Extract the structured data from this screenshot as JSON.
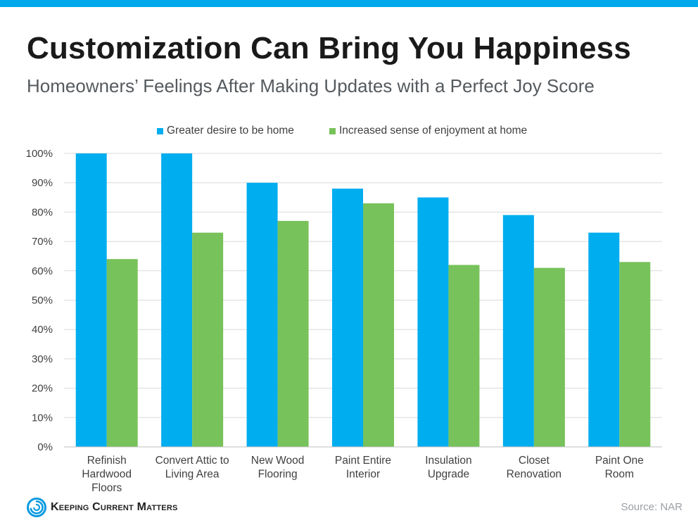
{
  "colors": {
    "top_bar": "#00a8ec",
    "series_blue": "#00adef",
    "series_green": "#77c25a",
    "axis_text": "#404040",
    "grid": "#d9d9d9"
  },
  "header": {
    "title": "Customization Can Bring You Happiness",
    "subtitle": "Homeowners’ Feelings After Making Updates with a Perfect Joy Score"
  },
  "chart_data": {
    "type": "bar",
    "title": "Customization Can Bring You Happiness",
    "subtitle": "Homeowners’ Feelings After Making Updates with a Perfect Joy Score",
    "categories": [
      "Refinish Hardwood Floors",
      "Convert Attic to Living Area",
      "New Wood Flooring",
      "Paint Entire Interior",
      "Insulation Upgrade",
      "Closet Renovation",
      "Paint One Room"
    ],
    "category_lines": [
      [
        "Refinish",
        "Hardwood",
        "Floors"
      ],
      [
        "Convert Attic to",
        "Living Area"
      ],
      [
        "New Wood",
        "Flooring"
      ],
      [
        "Paint Entire",
        "Interior"
      ],
      [
        "Insulation",
        "Upgrade"
      ],
      [
        "Closet",
        "Renovation"
      ],
      [
        "Paint One",
        "Room"
      ]
    ],
    "series": [
      {
        "name": "Greater desire to be home",
        "color": "#00adef",
        "values": [
          100,
          100,
          90,
          88,
          85,
          79,
          73
        ]
      },
      {
        "name": "Increased sense of enjoyment at home",
        "color": "#77c25a",
        "values": [
          64,
          73,
          77,
          83,
          62,
          61,
          63
        ]
      }
    ],
    "y_ticks": [
      "0%",
      "10%",
      "20%",
      "30%",
      "40%",
      "50%",
      "60%",
      "70%",
      "80%",
      "90%",
      "100%"
    ],
    "ylim": [
      0,
      100
    ],
    "grid": true,
    "legend": "top-center",
    "xlabel": "",
    "ylabel": ""
  },
  "footer": {
    "logo_text": "Keeping Current Matters",
    "source": "Source: NAR"
  }
}
